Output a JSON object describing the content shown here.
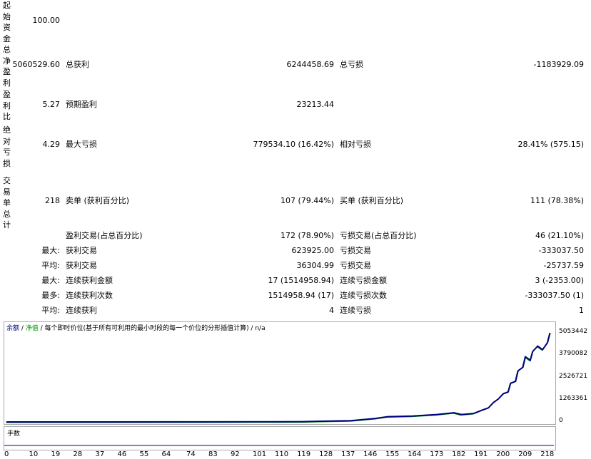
{
  "report": {
    "initial_deposit": {
      "label": "起始资金",
      "value": "100.00"
    },
    "net_profit": {
      "label": "总净盈利",
      "value": "5060529.60"
    },
    "gross_profit": {
      "label": "总获利",
      "value": "6244458.69"
    },
    "gross_loss": {
      "label": "总亏损",
      "value": "-1183929.09"
    },
    "profit_factor": {
      "label": "盈利比",
      "value": "5.27"
    },
    "expected_payoff": {
      "label": "预期盈利",
      "value": "23213.44"
    },
    "absolute_drawdown": {
      "label": "绝对亏损",
      "value": "4.29"
    },
    "maximal_drawdown": {
      "label": "最大亏损",
      "value": "779534.10 (16.42%)"
    },
    "relative_drawdown": {
      "label": "相对亏损",
      "value": "28.41% (575.15)"
    },
    "total_trades": {
      "label": "交易单总计",
      "value": "218"
    },
    "short_positions": {
      "label": "卖单 (获利百分比)",
      "value": "107 (79.44%)"
    },
    "long_positions": {
      "label": "买单 (获利百分比)",
      "value": "111 (78.38%)"
    },
    "profit_trades": {
      "label": "盈利交易(占总百分比)",
      "value": "172 (78.90%)"
    },
    "loss_trades": {
      "label": "亏损交易(占总百分比)",
      "value": "46 (21.10%)"
    },
    "largest": {
      "prefix": "最大:",
      "profit_label": "获利交易",
      "profit_value": "623925.00",
      "loss_label": "亏损交易",
      "loss_value": "-333037.50"
    },
    "average": {
      "prefix": "平均:",
      "profit_label": "获利交易",
      "profit_value": "36304.99",
      "loss_label": "亏损交易",
      "loss_value": "-25737.59"
    },
    "max_consecutive": {
      "prefix": "最大:",
      "wins_label": "连续获利金额",
      "wins_value": "17 (1514958.94)",
      "losses_label": "连续亏损金额",
      "losses_value": "3 (-2353.00)"
    },
    "maximal_consecutive": {
      "prefix": "最多:",
      "profit_label": "连续获利次数",
      "profit_value": "1514958.94 (17)",
      "loss_label": "连续亏损次数",
      "loss_value": "-333037.50 (1)"
    },
    "average_consecutive": {
      "prefix": "平均:",
      "wins_label": "连续获利",
      "wins_value": "4",
      "losses_label": "连续亏损",
      "losses_value": "1"
    }
  },
  "chart": {
    "legend_balance": "余额",
    "legend_sep1": " / ",
    "legend_equity": "净值",
    "legend_rest": " / 每个即时价位(基于所有可利用的最小时段的每一个价位的分形插值计算) / n/a",
    "sub_label": "手数",
    "colors": {
      "balance": "#000080",
      "equity": "#009900"
    }
  },
  "chart_data": {
    "type": "line",
    "title": "",
    "xlabel": "",
    "ylabel": "",
    "ylim": [
      0,
      5053442
    ],
    "ytick_labels": [
      "5053442",
      "3790082",
      "2526721",
      "1263361",
      "0"
    ],
    "yticks": [
      5053442,
      3790082,
      2526721,
      1263361,
      0
    ],
    "xticks": [
      0,
      10,
      19,
      28,
      37,
      46,
      55,
      64,
      74,
      83,
      92,
      101,
      110,
      119,
      128,
      137,
      146,
      155,
      164,
      173,
      182,
      191,
      200,
      209,
      218
    ],
    "xlim": [
      0,
      222
    ],
    "x": [
      0,
      40,
      80,
      120,
      128,
      140,
      150,
      155,
      165,
      175,
      182,
      185,
      190,
      193,
      196,
      198,
      200,
      202,
      204,
      205,
      207,
      208,
      210,
      211,
      213,
      214,
      216,
      218,
      220,
      221
    ],
    "series": [
      {
        "values": [
          100,
          2000,
          5000,
          15000,
          40000,
          70000,
          200000,
          300000,
          330000,
          420000,
          520000,
          420000,
          480000,
          650000,
          800000,
          1100000,
          1300000,
          1600000,
          1700000,
          2200000,
          2300000,
          2900000,
          3100000,
          3700000,
          3500000,
          4000000,
          4300000,
          4100000,
          4500000,
          5053442
        ]
      }
    ]
  }
}
